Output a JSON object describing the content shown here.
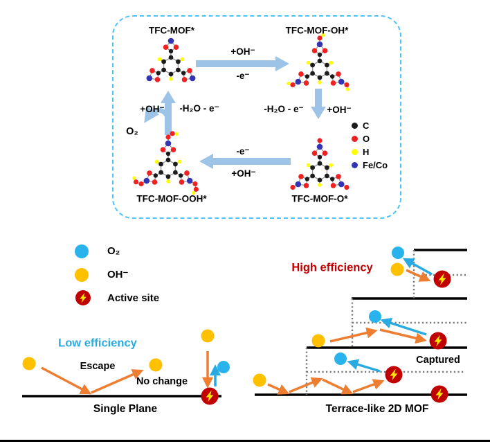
{
  "colors": {
    "cycle_arrow": "#9dc3e6",
    "dashed_box": "#4fc3f7",
    "bond": "#999999",
    "atom_c": "#1c1c1c",
    "atom_o": "#ee2222",
    "atom_h": "#ffff00",
    "atom_m": "#3333b3",
    "o2_dot": "#29b3ec",
    "oh_dot": "#ffc000",
    "active_red": "#c00000",
    "bolt_yellow": "#ffe600",
    "orange_arrow": "#ed7d31",
    "blue_arrow": "#29abe2",
    "low_eff_text": "#29abe2",
    "high_eff_text": "#c00000",
    "dotted_gray": "#7a7a7a",
    "line_black": "#000000"
  },
  "cycle": {
    "states": {
      "top_left": "TFC-MOF*",
      "top_right": "TFC-MOF-OH*",
      "bottom_left": "TFC-MOF-OOH*",
      "bottom_right": "TFC-MOF-O*"
    },
    "labels": {
      "top_above": "+OH⁻",
      "top_below": "-e⁻",
      "right_left": "-H₂O - e⁻",
      "right_right": "+OH⁻",
      "bottom_above": "-e⁻",
      "bottom_below": "+OH⁻",
      "left_left": "+OH⁻",
      "left_right": "-H₂O - e⁻",
      "o2": "O₂"
    },
    "atom_legend": [
      {
        "label": "C",
        "color": "#1c1c1c"
      },
      {
        "label": "O",
        "color": "#ee2222"
      },
      {
        "label": "H",
        "color": "#ffff00"
      },
      {
        "label": "Fe/Co",
        "color": "#3333b3"
      }
    ]
  },
  "symbol_legend": [
    {
      "label": "O₂",
      "type": "dot",
      "color": "#29b3ec"
    },
    {
      "label": "OH⁻",
      "type": "dot",
      "color": "#ffc000"
    },
    {
      "label": "Active site",
      "type": "active"
    }
  ],
  "left_panel": {
    "title": "Low efficiency",
    "escape_label": "Escape",
    "no_change_label": "No change",
    "caption": "Single Plane"
  },
  "right_panel": {
    "title": "High efficiency",
    "captured_label": "Captured",
    "caption": "Terrace-like 2D MOF"
  }
}
